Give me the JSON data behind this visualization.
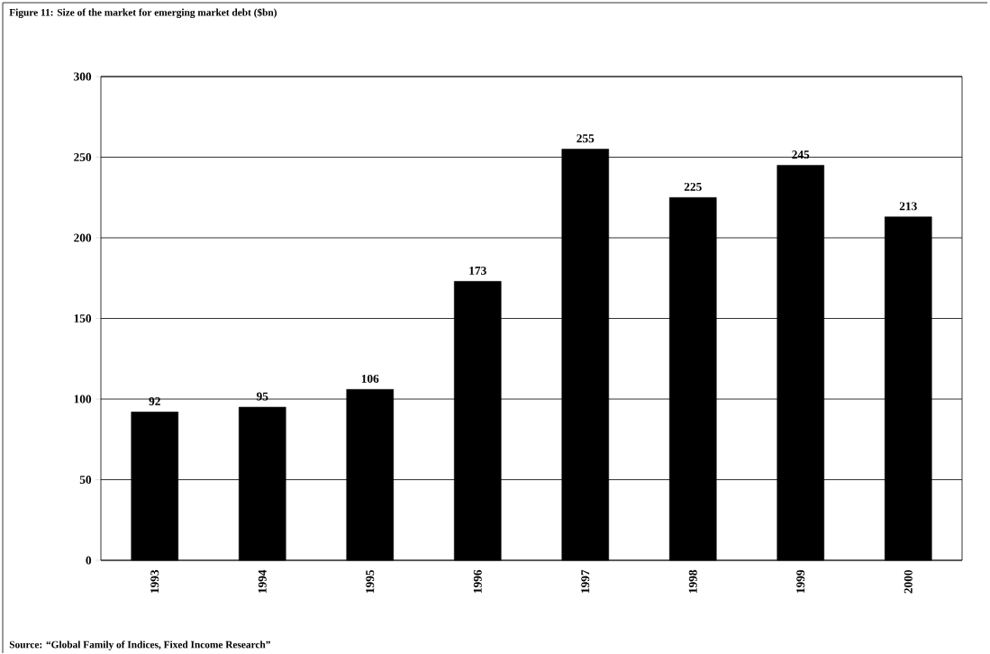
{
  "chart_data": {
    "type": "bar",
    "title": "Figure 11: Size of the market for emerging market debt ($bn)",
    "categories": [
      "1993",
      "1994",
      "1995",
      "1996",
      "1997",
      "1998",
      "1999",
      "2000"
    ],
    "values": [
      92,
      95,
      106,
      173,
      255,
      225,
      245,
      213
    ],
    "color": "#000000",
    "ylim": [
      0,
      300
    ],
    "yticks": [
      0,
      50,
      100,
      150,
      200,
      250,
      300
    ],
    "grid": "y",
    "data_labels": true,
    "annotations": [
      "Source: “Global Family of Indices, Fixed Income Research”"
    ]
  }
}
